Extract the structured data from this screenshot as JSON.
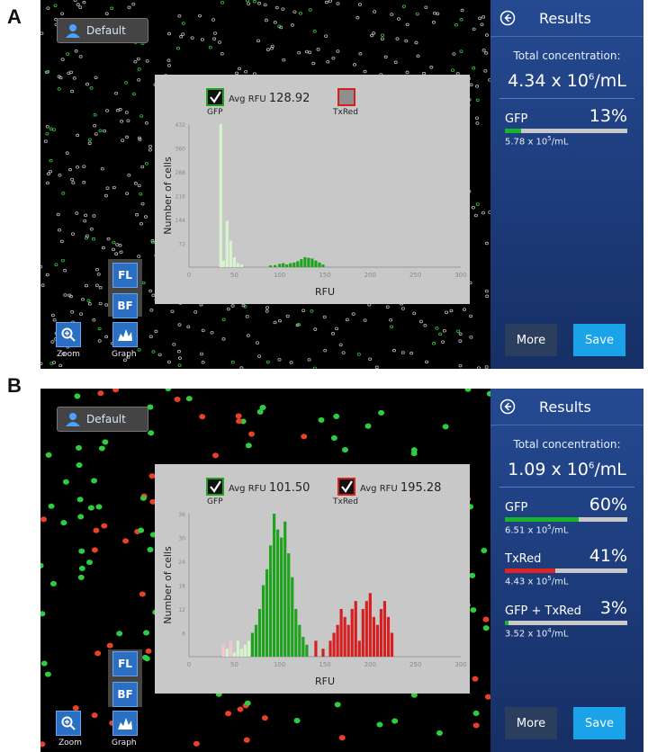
{
  "panels": [
    {
      "letter": "A",
      "default_label": "Default",
      "results_title": "Results",
      "total_label": "Total concentration:",
      "total_mant": "4.34 x 10",
      "total_exp": "6",
      "total_unit": "/mL",
      "stats": [
        {
          "name": "GFP",
          "pct": "13%",
          "fill": 0.13,
          "color": "#17b52a",
          "conc_mant": "5.78 x 10",
          "conc_exp": "5",
          "conc_unit": "/mL"
        }
      ],
      "more_label": "More",
      "save_label": "Save",
      "tools": {
        "fl": "FL",
        "bf": "BF",
        "zoom": "Zoom",
        "graph": "Graph"
      },
      "graph": {
        "gfp_checked": true,
        "gfp_label": "GFP",
        "gfp_avg_label": "Avg RFU",
        "gfp_avg_value": "128.92",
        "txred_checked": false,
        "txred_label": "TxRed",
        "ylabel": "Number of cells",
        "xlabel": "RFU"
      },
      "chart_data": {
        "type": "bar",
        "xlabel": "RFU",
        "ylabel": "Number of cells",
        "xlim": [
          0,
          300
        ],
        "ylim": [
          0,
          432
        ],
        "xticks": [
          0,
          50,
          100,
          150,
          200,
          250,
          300
        ],
        "yticks": [
          0,
          72,
          144,
          216,
          288,
          360,
          432
        ],
        "series": [
          {
            "name": "GFP",
            "color_light": "#d6f5cf",
            "color": "#1fa31f",
            "threshold": 90,
            "bins": [
              [
                35,
                432
              ],
              [
                38,
                20
              ],
              [
                42,
                140
              ],
              [
                46,
                80
              ],
              [
                50,
                30
              ],
              [
                54,
                12
              ],
              [
                58,
                8
              ],
              [
                90,
                5
              ],
              [
                95,
                6
              ],
              [
                100,
                10
              ],
              [
                104,
                12
              ],
              [
                108,
                8
              ],
              [
                112,
                12
              ],
              [
                116,
                14
              ],
              [
                120,
                18
              ],
              [
                124,
                24
              ],
              [
                128,
                30
              ],
              [
                132,
                28
              ],
              [
                136,
                26
              ],
              [
                140,
                20
              ],
              [
                144,
                14
              ],
              [
                148,
                8
              ]
            ]
          }
        ]
      }
    },
    {
      "letter": "B",
      "default_label": "Default",
      "results_title": "Results",
      "total_label": "Total concentration:",
      "total_mant": "1.09 x 10",
      "total_exp": "6",
      "total_unit": "/mL",
      "stats": [
        {
          "name": "GFP",
          "pct": "60%",
          "fill": 0.6,
          "color": "#17b52a",
          "conc_mant": "6.51 x 10",
          "conc_exp": "5",
          "conc_unit": "/mL"
        },
        {
          "name": "TxRed",
          "pct": "41%",
          "fill": 0.41,
          "color": "#e02424",
          "conc_mant": "4.43 x 10",
          "conc_exp": "5",
          "conc_unit": "/mL"
        },
        {
          "name": "GFP + TxRed",
          "pct": "3%",
          "fill": 0.03,
          "color": "#17b52a",
          "conc_mant": "3.52 x 10",
          "conc_exp": "4",
          "conc_unit": "/mL"
        }
      ],
      "more_label": "More",
      "save_label": "Save",
      "tools": {
        "fl": "FL",
        "bf": "BF",
        "zoom": "Zoom",
        "graph": "Graph"
      },
      "graph": {
        "gfp_checked": true,
        "gfp_label": "GFP",
        "gfp_avg_label": "Avg RFU",
        "gfp_avg_value": "101.50",
        "txred_checked": true,
        "txred_label": "TxRed",
        "txred_avg_label": "Avg RFU",
        "txred_avg_value": "195.28",
        "ylabel": "Number of cells",
        "xlabel": "RFU"
      },
      "chart_data": {
        "type": "bar",
        "xlabel": "RFU",
        "ylabel": "Number of cells",
        "xlim": [
          0,
          300
        ],
        "ylim": [
          0,
          36
        ],
        "xticks": [
          0,
          50,
          100,
          150,
          200,
          250,
          300
        ],
        "yticks": [
          0,
          6,
          12,
          18,
          24,
          30,
          36
        ],
        "series": [
          {
            "name": "GFP",
            "color_light": "#d6f5cf",
            "color": "#1fa31f",
            "threshold": 70,
            "bins": [
              [
                42,
                2
              ],
              [
                46,
                3
              ],
              [
                50,
                1
              ],
              [
                54,
                4
              ],
              [
                58,
                2
              ],
              [
                62,
                3
              ],
              [
                66,
                4
              ],
              [
                70,
                6
              ],
              [
                74,
                8
              ],
              [
                78,
                12
              ],
              [
                82,
                18
              ],
              [
                86,
                22
              ],
              [
                90,
                28
              ],
              [
                94,
                36
              ],
              [
                98,
                32
              ],
              [
                102,
                30
              ],
              [
                106,
                34
              ],
              [
                110,
                26
              ],
              [
                114,
                20
              ],
              [
                118,
                12
              ],
              [
                122,
                8
              ],
              [
                126,
                5
              ],
              [
                130,
                3
              ]
            ]
          },
          {
            "name": "TxRed",
            "color_light": "#f5c6d0",
            "color": "#d42020",
            "threshold": 70,
            "bins": [
              [
                38,
                3
              ],
              [
                46,
                4
              ],
              [
                140,
                4
              ],
              [
                148,
                2
              ],
              [
                156,
                4
              ],
              [
                160,
                6
              ],
              [
                164,
                8
              ],
              [
                168,
                12
              ],
              [
                172,
                10
              ],
              [
                176,
                8
              ],
              [
                180,
                12
              ],
              [
                184,
                14
              ],
              [
                188,
                4
              ],
              [
                192,
                12
              ],
              [
                196,
                14
              ],
              [
                200,
                16
              ],
              [
                204,
                10
              ],
              [
                208,
                8
              ],
              [
                212,
                12
              ],
              [
                216,
                14
              ],
              [
                220,
                10
              ],
              [
                224,
                6
              ]
            ]
          }
        ]
      }
    }
  ]
}
